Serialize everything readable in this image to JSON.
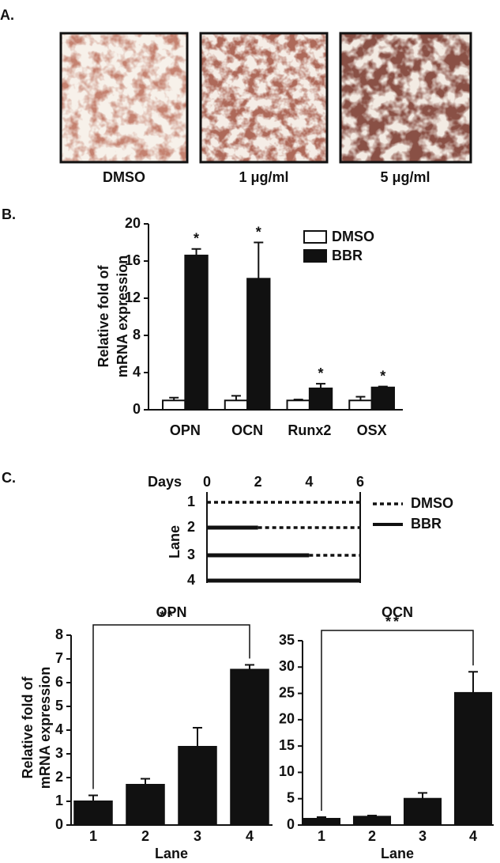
{
  "panel_labels": [
    "A.",
    "B.",
    "C."
  ],
  "images": {
    "captions": [
      "DMSO",
      "1 μg/ml",
      "5 μg/ml"
    ]
  },
  "timeline": {
    "x_label": "Days",
    "xlim": [
      0,
      6
    ],
    "xticks": [
      0,
      2,
      4,
      6
    ],
    "y_label": "Lane",
    "lanes": [
      "1",
      "2",
      "3",
      "4"
    ],
    "bbr_end": [
      0,
      2,
      4,
      6
    ],
    "legend": [
      "DMSO",
      "BBR"
    ]
  },
  "chart_data": [
    {
      "type": "bar",
      "y_label": [
        "Relative fold of",
        "mRNA expression"
      ],
      "categories": [
        "OPN",
        "OCN",
        "Runx2",
        "OSX"
      ],
      "series": [
        {
          "name": "DMSO",
          "color": "#ffffff",
          "values": [
            1,
            1,
            1,
            1
          ],
          "errors": [
            0.3,
            0.5,
            0.1,
            0.4
          ]
        },
        {
          "name": "BBR",
          "color": "#111111",
          "values": [
            16.6,
            14.1,
            2.3,
            2.4
          ],
          "errors": [
            0.7,
            3.9,
            0.5,
            0.1
          ],
          "labels": [
            "*",
            "*",
            "*",
            "*"
          ]
        }
      ],
      "ylim": [
        0,
        20
      ],
      "yticks": [
        0,
        4,
        8,
        12,
        16,
        20
      ],
      "legend": "top-right"
    },
    {
      "type": "bar",
      "title": "OPN",
      "y_label": [
        "Relative fold of",
        "mRNA expression"
      ],
      "x_label": "Lane",
      "categories": [
        "1",
        "2",
        "3",
        "4"
      ],
      "values": [
        1.0,
        1.7,
        3.3,
        6.55
      ],
      "errors": [
        0.25,
        0.25,
        0.8,
        0.2
      ],
      "color": "#111111",
      "ylim": [
        0,
        8
      ],
      "yticks": [
        0,
        1,
        2,
        3,
        4,
        5,
        6,
        7,
        8
      ],
      "bracket_label": "**"
    },
    {
      "type": "bar",
      "title": "OCN",
      "x_label": "Lane",
      "categories": [
        "1",
        "2",
        "3",
        "4"
      ],
      "values": [
        1.2,
        1.6,
        5.0,
        25.1
      ],
      "errors": [
        0.3,
        0.2,
        1.1,
        4.0
      ],
      "color": "#111111",
      "ylim": [
        0,
        35
      ],
      "yticks": [
        0,
        5,
        10,
        15,
        20,
        25,
        30,
        35
      ],
      "bracket_label": "**"
    }
  ]
}
